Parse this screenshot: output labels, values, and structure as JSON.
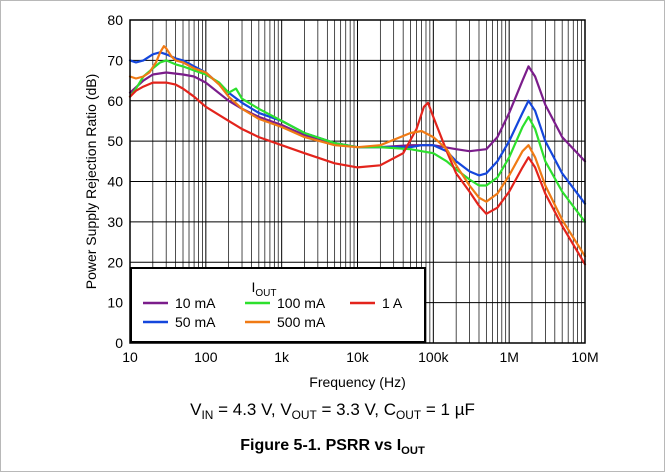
{
  "chart_data": {
    "type": "line",
    "x_scale": "log",
    "xlabel": "Frequency (Hz)",
    "ylabel": "Power Supply Rejection Ratio (dB)",
    "xlim": [
      10,
      10000000
    ],
    "ylim": [
      0,
      80
    ],
    "grid": true,
    "x_ticks": [
      10,
      100,
      1000,
      10000,
      100000,
      1000000,
      10000000
    ],
    "x_tick_labels": [
      "10",
      "100",
      "1k",
      "10k",
      "100k",
      "1M",
      "10M"
    ],
    "y_ticks": [
      0,
      10,
      20,
      30,
      40,
      50,
      60,
      70,
      80
    ],
    "y_tick_labels": [
      "0",
      "10",
      "20",
      "30",
      "40",
      "50",
      "60",
      "70",
      "80"
    ],
    "legend": {
      "title_main": "I",
      "title_sub": "OUT",
      "placement": "bottom-left"
    },
    "series": [
      {
        "name": "10 mA",
        "color": "#7b1d8b",
        "x": [
          10,
          15,
          20,
          30,
          50,
          70,
          100,
          200,
          300,
          500,
          1000,
          2000,
          5000,
          10000,
          20000,
          50000,
          100000,
          200000,
          300000,
          500000,
          700000,
          1000000,
          1500000,
          1800000,
          2200000,
          3000000,
          5000000,
          10000000
        ],
        "y": [
          62,
          65,
          66.5,
          67,
          66.5,
          66,
          64.5,
          60,
          58,
          56,
          54,
          51.5,
          49.5,
          48.5,
          48.5,
          49,
          49,
          48,
          47.5,
          48,
          51,
          57,
          65,
          68.5,
          66,
          59,
          51,
          45
        ]
      },
      {
        "name": "50 mA",
        "color": "#1446dc",
        "x": [
          10,
          12,
          15,
          20,
          25,
          30,
          40,
          50,
          70,
          100,
          200,
          300,
          500,
          1000,
          2000,
          5000,
          10000,
          20000,
          50000,
          70000,
          100000,
          150000,
          200000,
          300000,
          400000,
          500000,
          700000,
          1000000,
          1500000,
          1800000,
          2200000,
          3000000,
          5000000,
          10000000
        ],
        "y": [
          70,
          69.5,
          70,
          71.5,
          72,
          71.5,
          70.5,
          70,
          68.5,
          67,
          62,
          59.5,
          57,
          55,
          52,
          49.5,
          48.5,
          48.5,
          48.5,
          49,
          49,
          47.5,
          45,
          42.5,
          41.5,
          42,
          45,
          50,
          57,
          60,
          57.5,
          50,
          42,
          34.5
        ]
      },
      {
        "name": "100 mA",
        "color": "#2de02d",
        "x": [
          10,
          12,
          15,
          20,
          25,
          30,
          40,
          50,
          70,
          100,
          150,
          200,
          250,
          300,
          500,
          1000,
          2000,
          5000,
          10000,
          20000,
          50000,
          70000,
          100000,
          150000,
          200000,
          300000,
          400000,
          500000,
          700000,
          1000000,
          1500000,
          1800000,
          2200000,
          3000000,
          5000000,
          10000000
        ],
        "y": [
          61,
          63,
          66,
          68,
          69.5,
          70,
          69,
          68.5,
          67.5,
          66.5,
          64.5,
          62,
          63,
          60.5,
          58,
          55,
          52,
          49.5,
          48.5,
          48.5,
          48,
          47.5,
          47,
          45,
          43,
          40.5,
          39,
          39,
          41,
          46,
          53.5,
          56,
          53,
          45,
          37.5,
          30
        ]
      },
      {
        "name": "1 A",
        "color": "#e3241c",
        "x": [
          10,
          12,
          15,
          20,
          30,
          40,
          50,
          70,
          100,
          200,
          300,
          500,
          1000,
          2000,
          5000,
          10000,
          20000,
          40000,
          60000,
          75000,
          85000,
          100000,
          150000,
          200000,
          300000,
          400000,
          500000,
          700000,
          1000000,
          1500000,
          1800000,
          2200000,
          3000000,
          5000000,
          10000000
        ],
        "y": [
          61,
          62.5,
          63.5,
          64.5,
          64.5,
          64,
          63,
          61,
          58.5,
          55,
          53,
          51,
          49,
          47,
          44.5,
          43.5,
          44,
          47,
          53,
          58.5,
          59.5,
          56,
          47.5,
          42,
          37.5,
          34,
          32,
          33.5,
          37.5,
          43.5,
          46,
          43.5,
          37,
          29,
          19.5
        ]
      },
      {
        "name": "500 mA",
        "color": "#f07a14",
        "x": [
          10,
          12,
          15,
          18,
          22,
          25,
          28,
          30,
          35,
          40,
          50,
          70,
          100,
          150,
          200,
          300,
          500,
          1000,
          2000,
          5000,
          10000,
          20000,
          50000,
          70000,
          100000,
          150000,
          200000,
          300000,
          400000,
          500000,
          700000,
          1000000,
          1500000,
          1800000,
          2200000,
          3000000,
          5000000,
          10000000
        ],
        "y": [
          66,
          65.5,
          66,
          67,
          69.5,
          72,
          73.5,
          73,
          71,
          70,
          69.5,
          68,
          67,
          64,
          61,
          58,
          55.5,
          53.5,
          51,
          49,
          48.5,
          49,
          52,
          52.5,
          51,
          48,
          44,
          39,
          36,
          35,
          37,
          41.5,
          47.5,
          49,
          46,
          39,
          30.5,
          21.5
        ]
      }
    ],
    "legend_order": [
      0,
      2,
      3,
      1,
      4
    ]
  },
  "caption": {
    "v": "V",
    "v_in_sub": "IN",
    "v_in_val": " = 4.3 V, ",
    "v_out_sub": "OUT",
    "v_out_val": " = 3.3 V, ",
    "c": "C",
    "c_out_sub": "OUT",
    "c_out_val": " = 1 µF"
  },
  "figure": {
    "label": "Figure 5-1. PSRR vs I",
    "sub": "OUT"
  }
}
